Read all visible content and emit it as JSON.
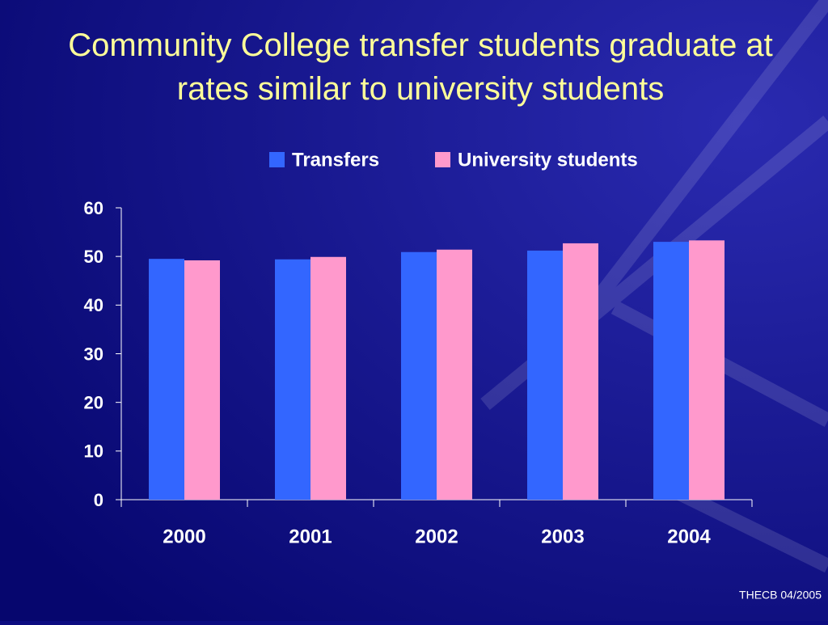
{
  "chart_data": {
    "type": "bar",
    "title": "Community College transfer students graduate at rates similar to university students",
    "categories": [
      "2000",
      "2001",
      "2002",
      "2003",
      "2004"
    ],
    "series": [
      {
        "name": "Transfers",
        "color": "#3366ff",
        "values": [
          49.5,
          49.4,
          50.9,
          51.2,
          53.0
        ]
      },
      {
        "name": "University students",
        "color": "#ff99cc",
        "values": [
          49.2,
          49.9,
          51.4,
          52.7,
          53.3
        ]
      }
    ],
    "ylim": [
      0,
      60
    ],
    "yticks": [
      0,
      10,
      20,
      30,
      40,
      50,
      60
    ],
    "legend": "top",
    "footer": "THECB 04/2005"
  }
}
